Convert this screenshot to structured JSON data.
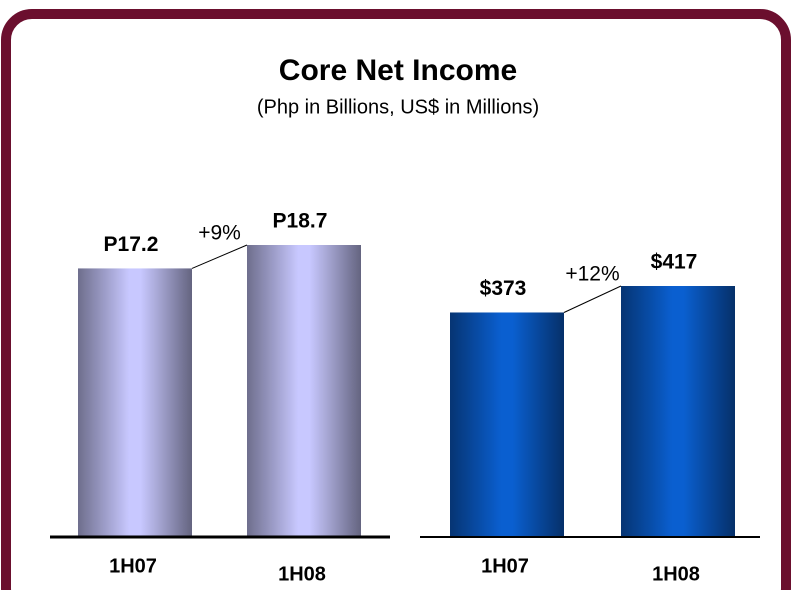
{
  "title": "Core Net Income",
  "subtitle": "(Php in Billions, US$ in Millions)",
  "chart_data": [
    {
      "type": "bar",
      "categories": [
        "1H07",
        "1H08"
      ],
      "values": [
        17.2,
        18.7
      ],
      "value_labels": [
        "P17.2",
        "P18.7"
      ],
      "annotation": "+9%",
      "color": "#c8c8ff"
    },
    {
      "type": "bar",
      "categories": [
        "1H07",
        "1H08"
      ],
      "values": [
        373,
        417
      ],
      "value_labels": [
        "$373",
        "$417"
      ],
      "annotation": "+12%",
      "color": "#0a5fd0"
    }
  ]
}
